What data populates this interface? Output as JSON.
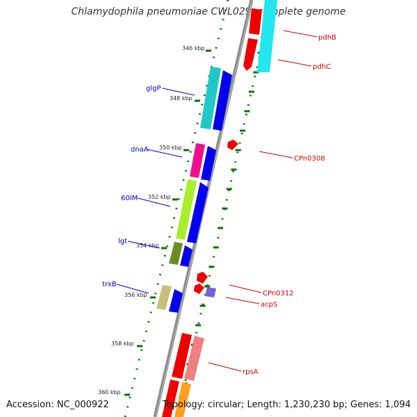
{
  "title": "Chlamydophila pneumoniae CWL029, complete genome",
  "accession": "Accession: NC_000922",
  "summary": "Topology: circular; Length: 1,230,230 bp; Genes: 1,094",
  "colors": {
    "backbone": "#808080",
    "forward_label": "#0000cc",
    "reverse_label": "#cc0000",
    "tick": "#007700"
  },
  "ticks": [
    {
      "label": "346 kbp",
      "kbp": 346
    },
    {
      "label": "348 kbp",
      "kbp": 348
    },
    {
      "label": "350 kbp",
      "kbp": 350
    },
    {
      "label": "352 kbp",
      "kbp": 352
    },
    {
      "label": "354 kbp",
      "kbp": 354
    },
    {
      "label": "356 kbp",
      "kbp": 356
    },
    {
      "label": "358 kbp",
      "kbp": 358
    },
    {
      "label": "360 kbp",
      "kbp": 360
    }
  ],
  "genes_left": [
    {
      "name": "glgP"
    },
    {
      "name": "dnaA"
    },
    {
      "name": "60IM"
    },
    {
      "name": "lgt"
    },
    {
      "name": "trxB"
    }
  ],
  "genes_right": [
    {
      "name": "pdhB"
    },
    {
      "name": "pdhC"
    },
    {
      "name": "CPn0308"
    },
    {
      "name": "CPn0312"
    },
    {
      "name": "acpS"
    },
    {
      "name": "rpsA"
    }
  ]
}
